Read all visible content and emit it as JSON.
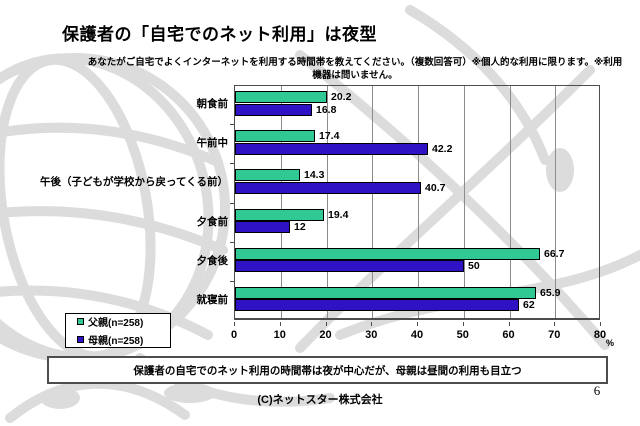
{
  "slide": {
    "title": "保護者の「自宅でのネット利用」は夜型",
    "subtitle_line1": "あなたがご自宅でよくインターネットを利用する時間帯を教えてください。（複数回答可）※個人的な利用に限ります。※利用",
    "subtitle_line2": "機器は問いません。",
    "message": "保護者の自宅でのネット利用の時間帯は夜が中心だが、母親は昼間の利用も目立つ",
    "footer": "(C)ネットスター株式会社",
    "page_number": "6"
  },
  "chart_data": {
    "type": "bar",
    "orientation": "horizontal",
    "title": "",
    "xlabel": "%",
    "ylabel": "",
    "categories": [
      "朝食前",
      "午前中",
      "午後（子どもが学校から戻ってくる前）",
      "夕食前",
      "夕食後",
      "就寝前"
    ],
    "series": [
      {
        "name": "父親(n=258)",
        "color": "#30C893",
        "values": [
          20.2,
          17.4,
          14.3,
          19.4,
          66.7,
          65.9
        ]
      },
      {
        "name": "母親(n=258)",
        "color": "#2E12C4",
        "values": [
          16.8,
          42.2,
          40.7,
          12,
          50,
          62
        ]
      }
    ],
    "xlim": [
      0,
      80
    ],
    "x_ticks": [
      0,
      10,
      20,
      30,
      40,
      50,
      60,
      70,
      80
    ],
    "x_unit": "%",
    "grid": true,
    "legend_position": "bottom-left"
  },
  "colors": {
    "watermark": "#dcdcdc",
    "gridline": "#8c8c8c",
    "axis": "#4d4d4d"
  }
}
